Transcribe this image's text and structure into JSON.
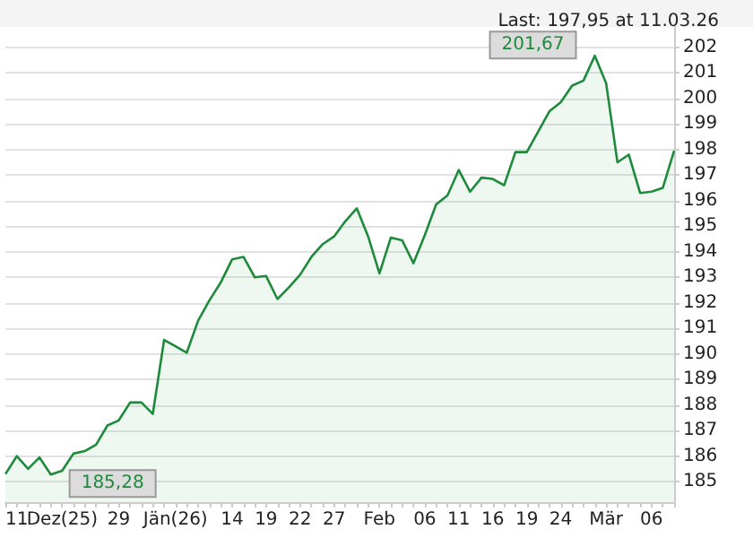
{
  "chart_data": {
    "type": "area",
    "title": "Last: 197,95 at 11.03.26",
    "categories": [
      null,
      "11",
      null,
      null,
      null,
      "Dez(25)",
      null,
      null,
      null,
      null,
      "29",
      null,
      null,
      null,
      null,
      "Jän(26)",
      null,
      null,
      null,
      null,
      "14",
      null,
      null,
      "19",
      null,
      null,
      "22",
      null,
      null,
      "27",
      null,
      null,
      null,
      "Feb",
      null,
      null,
      null,
      "06",
      null,
      null,
      "11",
      null,
      null,
      "16",
      null,
      null,
      "19",
      null,
      null,
      "24",
      null,
      null,
      null,
      "Mär",
      null,
      null,
      null,
      "06",
      null,
      null
    ],
    "series": [
      {
        "color": "#1e8a3c",
        "values": [
          185.3,
          186.0,
          185.5,
          185.95,
          185.28,
          185.43,
          186.1,
          186.2,
          186.45,
          187.2,
          187.4,
          188.1,
          188.1,
          187.65,
          190.55,
          190.3,
          190.05,
          191.3,
          192.1,
          192.8,
          193.7,
          193.8,
          193.0,
          193.05,
          192.15,
          192.6,
          193.1,
          193.8,
          194.3,
          194.6,
          195.2,
          195.7,
          194.6,
          193.15,
          194.55,
          194.45,
          193.55,
          194.65,
          195.85,
          196.2,
          197.2,
          196.35,
          196.9,
          196.85,
          196.6,
          197.9,
          197.9,
          198.7,
          199.5,
          199.85,
          200.5,
          200.7,
          201.67,
          200.6,
          197.5,
          197.8,
          196.3,
          196.35,
          196.5,
          197.95
        ]
      }
    ],
    "annotations": [
      "201,67",
      "185,28"
    ],
    "ylim": [
      184.2,
      202.8
    ],
    "yticks": [
      185,
      186,
      187,
      188,
      189,
      190,
      191,
      192,
      193,
      194,
      195,
      196,
      197,
      198,
      199,
      200,
      201,
      202
    ],
    "grid": "y"
  }
}
